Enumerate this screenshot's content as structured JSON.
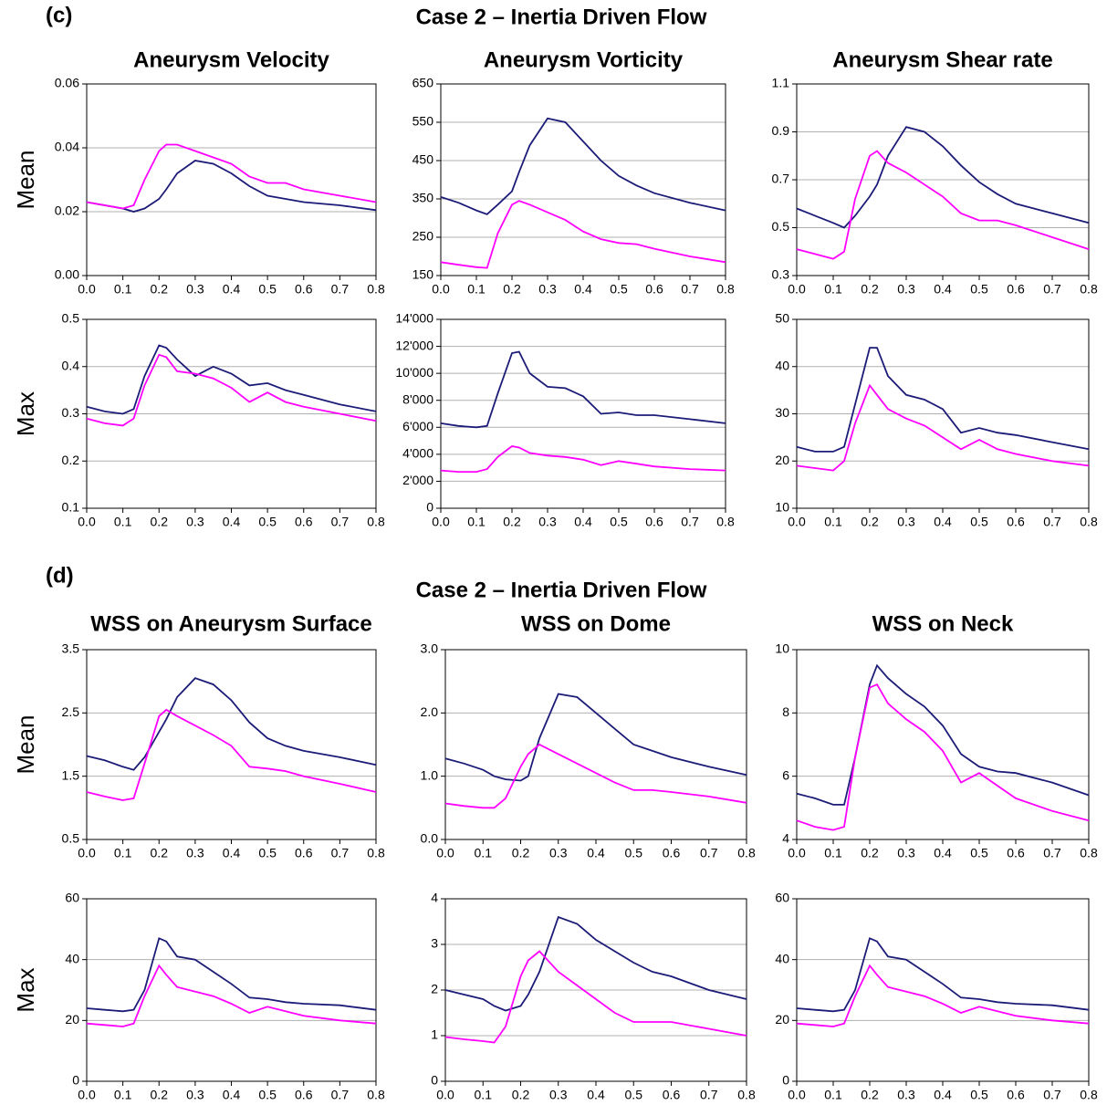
{
  "panels": [
    {
      "label": "(c)",
      "title": "Case 2 – Inertia Driven Flow"
    },
    {
      "label": "(d)",
      "title": "Case 2 – Inertia Driven Flow"
    }
  ],
  "chart_data": [
    {
      "type": "line",
      "title": "Aneurysm Velocity",
      "ylabel": "Mean",
      "grid": true,
      "x": [
        0,
        0.05,
        0.1,
        0.13,
        0.16,
        0.2,
        0.22,
        0.25,
        0.3,
        0.35,
        0.4,
        0.45,
        0.5,
        0.55,
        0.6,
        0.7,
        0.8
      ],
      "xlim": [
        0,
        0.8
      ],
      "xticks": [
        {
          "value": 0,
          "label": "0.0"
        },
        0.1,
        0.2,
        0.3,
        0.4,
        0.5,
        0.6,
        0.7,
        0.8
      ],
      "ylim": [
        0,
        0.06
      ],
      "yticks": [
        {
          "value": 0,
          "label": "0.00"
        },
        0.02,
        0.04,
        0.06
      ],
      "series": [
        {
          "color": "#1c1c78",
          "values": [
            0.023,
            0.022,
            0.021,
            0.02,
            0.021,
            0.024,
            0.027,
            0.032,
            0.036,
            0.035,
            0.032,
            0.028,
            0.025,
            0.024,
            0.023,
            0.022,
            0.0205
          ]
        },
        {
          "color": "#ff00ff",
          "values": [
            0.023,
            0.022,
            0.021,
            0.022,
            0.03,
            0.039,
            0.041,
            0.041,
            0.039,
            0.037,
            0.035,
            0.031,
            0.029,
            0.029,
            0.027,
            0.025,
            0.023
          ]
        }
      ]
    },
    {
      "type": "line",
      "title": "Aneurysm Vorticity",
      "grid": true,
      "x": [
        0,
        0.05,
        0.1,
        0.13,
        0.16,
        0.2,
        0.22,
        0.25,
        0.3,
        0.35,
        0.4,
        0.45,
        0.5,
        0.55,
        0.6,
        0.7,
        0.8
      ],
      "xlim": [
        0,
        0.8
      ],
      "xticks": [
        {
          "value": 0,
          "label": "0.0"
        },
        0.1,
        0.2,
        0.3,
        0.4,
        0.5,
        0.6,
        0.7,
        0.8
      ],
      "ylim": [
        150,
        650
      ],
      "yticks": [
        150,
        250,
        350,
        450,
        550,
        650
      ],
      "series": [
        {
          "color": "#1c1c78",
          "values": [
            355,
            340,
            320,
            310,
            335,
            370,
            420,
            490,
            560,
            550,
            500,
            450,
            410,
            385,
            365,
            340,
            320
          ]
        },
        {
          "color": "#ff00ff",
          "values": [
            185,
            178,
            172,
            170,
            260,
            335,
            345,
            335,
            315,
            295,
            265,
            245,
            235,
            232,
            220,
            200,
            185
          ]
        }
      ]
    },
    {
      "type": "line",
      "title": "Aneurysm Shear rate",
      "grid": true,
      "x": [
        0,
        0.05,
        0.1,
        0.13,
        0.16,
        0.2,
        0.22,
        0.25,
        0.3,
        0.35,
        0.4,
        0.45,
        0.5,
        0.55,
        0.6,
        0.7,
        0.8
      ],
      "xlim": [
        0,
        0.8
      ],
      "xticks": [
        {
          "value": 0,
          "label": "0.0"
        },
        0.1,
        0.2,
        0.3,
        0.4,
        0.5,
        0.6,
        0.7,
        0.8
      ],
      "ylim": [
        0.3,
        1.1
      ],
      "yticks": [
        0.3,
        0.5,
        0.7,
        0.9,
        1.1
      ],
      "series": [
        {
          "color": "#1c1c78",
          "values": [
            0.58,
            0.55,
            0.52,
            0.5,
            0.55,
            0.63,
            0.68,
            0.8,
            0.92,
            0.9,
            0.84,
            0.76,
            0.69,
            0.64,
            0.6,
            0.56,
            0.52
          ]
        },
        {
          "color": "#ff00ff",
          "values": [
            0.41,
            0.39,
            0.37,
            0.4,
            0.62,
            0.8,
            0.82,
            0.77,
            0.73,
            0.68,
            0.63,
            0.56,
            0.53,
            0.53,
            0.51,
            0.46,
            0.41
          ]
        }
      ]
    },
    {
      "type": "line",
      "ylabel": "Max",
      "grid": true,
      "x": [
        0,
        0.05,
        0.1,
        0.13,
        0.16,
        0.2,
        0.22,
        0.25,
        0.3,
        0.35,
        0.4,
        0.45,
        0.5,
        0.55,
        0.6,
        0.7,
        0.8
      ],
      "xlim": [
        0,
        0.8
      ],
      "xticks": [
        {
          "value": 0,
          "label": "0.0"
        },
        0.1,
        0.2,
        0.3,
        0.4,
        0.5,
        0.6,
        0.7,
        0.8
      ],
      "ylim": [
        0.1,
        0.5
      ],
      "yticks": [
        0.1,
        0.2,
        0.3,
        0.4,
        0.5
      ],
      "series": [
        {
          "color": "#1c1c78",
          "values": [
            0.315,
            0.305,
            0.3,
            0.31,
            0.38,
            0.445,
            0.44,
            0.415,
            0.38,
            0.4,
            0.385,
            0.36,
            0.365,
            0.35,
            0.34,
            0.32,
            0.305
          ]
        },
        {
          "color": "#ff00ff",
          "values": [
            0.29,
            0.28,
            0.275,
            0.29,
            0.36,
            0.425,
            0.42,
            0.39,
            0.385,
            0.375,
            0.355,
            0.325,
            0.345,
            0.325,
            0.315,
            0.3,
            0.285
          ]
        }
      ]
    },
    {
      "type": "line",
      "grid": true,
      "x": [
        0,
        0.05,
        0.1,
        0.13,
        0.16,
        0.2,
        0.22,
        0.25,
        0.3,
        0.35,
        0.4,
        0.45,
        0.5,
        0.55,
        0.6,
        0.7,
        0.8
      ],
      "xlim": [
        0,
        0.8
      ],
      "xticks": [
        {
          "value": 0,
          "label": "0.0"
        },
        0.1,
        0.2,
        0.3,
        0.4,
        0.5,
        0.6,
        0.7,
        0.8
      ],
      "ylim": [
        0,
        14000
      ],
      "yticks": [
        0,
        {
          "value": 2000,
          "label": "2'000"
        },
        {
          "value": 4000,
          "label": "4'000"
        },
        {
          "value": 6000,
          "label": "6'000"
        },
        {
          "value": 8000,
          "label": "8'000"
        },
        {
          "value": 10000,
          "label": "10'000"
        },
        {
          "value": 12000,
          "label": "12'000"
        },
        {
          "value": 14000,
          "label": "14'000"
        }
      ],
      "series": [
        {
          "color": "#1c1c78",
          "values": [
            6300,
            6100,
            6000,
            6100,
            8500,
            11500,
            11600,
            10000,
            9000,
            8900,
            8300,
            7000,
            7100,
            6900,
            6900,
            6600,
            6300
          ]
        },
        {
          "color": "#ff00ff",
          "values": [
            2800,
            2700,
            2700,
            2900,
            3800,
            4600,
            4500,
            4100,
            3900,
            3800,
            3600,
            3200,
            3500,
            3300,
            3100,
            2900,
            2800
          ]
        }
      ]
    },
    {
      "type": "line",
      "grid": true,
      "x": [
        0,
        0.05,
        0.1,
        0.13,
        0.16,
        0.2,
        0.22,
        0.25,
        0.3,
        0.35,
        0.4,
        0.45,
        0.5,
        0.55,
        0.6,
        0.7,
        0.8
      ],
      "xlim": [
        0,
        0.8
      ],
      "xticks": [
        {
          "value": 0,
          "label": "0.0"
        },
        0.1,
        0.2,
        0.3,
        0.4,
        0.5,
        0.6,
        0.7,
        0.8
      ],
      "ylim": [
        10,
        50
      ],
      "yticks": [
        10,
        20,
        30,
        40,
        50
      ],
      "series": [
        {
          "color": "#1c1c78",
          "values": [
            23,
            22,
            22,
            23,
            32,
            44,
            44,
            38,
            34,
            33,
            31,
            26,
            27,
            26,
            25.5,
            24,
            22.5
          ]
        },
        {
          "color": "#ff00ff",
          "values": [
            19,
            18.5,
            18,
            20,
            28,
            36,
            34,
            31,
            29,
            27.5,
            25,
            22.5,
            24.5,
            22.5,
            21.5,
            20,
            19
          ]
        }
      ]
    },
    {
      "type": "line",
      "title": "WSS on Aneurysm Surface",
      "ylabel": "Mean",
      "grid": true,
      "x": [
        0,
        0.05,
        0.1,
        0.13,
        0.16,
        0.2,
        0.22,
        0.25,
        0.3,
        0.35,
        0.4,
        0.45,
        0.5,
        0.55,
        0.6,
        0.7,
        0.8
      ],
      "xlim": [
        0,
        0.8
      ],
      "xticks": [
        {
          "value": 0,
          "label": "0.0"
        },
        0.1,
        0.2,
        0.3,
        0.4,
        0.5,
        0.6,
        0.7,
        0.8
      ],
      "ylim": [
        0.5,
        3.5
      ],
      "yticks": [
        0.5,
        1.5,
        2.5,
        3.5
      ],
      "series": [
        {
          "color": "#1c1c78",
          "values": [
            1.82,
            1.75,
            1.65,
            1.6,
            1.8,
            2.2,
            2.4,
            2.75,
            3.05,
            2.95,
            2.7,
            2.35,
            2.1,
            1.98,
            1.9,
            1.8,
            1.68
          ]
        },
        {
          "color": "#ff00ff",
          "values": [
            1.25,
            1.18,
            1.12,
            1.15,
            1.7,
            2.45,
            2.55,
            2.45,
            2.3,
            2.15,
            1.98,
            1.65,
            1.62,
            1.58,
            1.5,
            1.38,
            1.25
          ]
        }
      ]
    },
    {
      "type": "line",
      "title": "WSS on Dome",
      "grid": true,
      "x": [
        0,
        0.05,
        0.1,
        0.13,
        0.16,
        0.2,
        0.22,
        0.25,
        0.3,
        0.35,
        0.4,
        0.45,
        0.5,
        0.55,
        0.6,
        0.7,
        0.8
      ],
      "xlim": [
        0,
        0.8
      ],
      "xticks": [
        {
          "value": 0,
          "label": "0.0"
        },
        0.1,
        0.2,
        0.3,
        0.4,
        0.5,
        0.6,
        0.7,
        0.8
      ],
      "ylim": [
        0,
        3
      ],
      "yticks": [
        {
          "value": 0,
          "label": "0.0"
        },
        {
          "value": 1,
          "label": "1.0"
        },
        {
          "value": 2,
          "label": "2.0"
        },
        {
          "value": 3,
          "label": "3.0"
        }
      ],
      "series": [
        {
          "color": "#1c1c78",
          "values": [
            1.28,
            1.2,
            1.1,
            1.0,
            0.95,
            0.93,
            1.0,
            1.6,
            2.3,
            2.25,
            2.0,
            1.75,
            1.5,
            1.4,
            1.3,
            1.15,
            1.02
          ]
        },
        {
          "color": "#ff00ff",
          "values": [
            0.57,
            0.53,
            0.5,
            0.5,
            0.65,
            1.15,
            1.35,
            1.5,
            1.35,
            1.2,
            1.05,
            0.9,
            0.78,
            0.78,
            0.75,
            0.68,
            0.58
          ]
        }
      ]
    },
    {
      "type": "line",
      "title": "WSS on Neck",
      "grid": true,
      "x": [
        0,
        0.05,
        0.1,
        0.13,
        0.16,
        0.2,
        0.22,
        0.25,
        0.3,
        0.35,
        0.4,
        0.45,
        0.5,
        0.55,
        0.6,
        0.7,
        0.8
      ],
      "xlim": [
        0,
        0.8
      ],
      "xticks": [
        {
          "value": 0,
          "label": "0.0"
        },
        0.1,
        0.2,
        0.3,
        0.4,
        0.5,
        0.6,
        0.7,
        0.8
      ],
      "ylim": [
        4,
        10
      ],
      "yticks": [
        4,
        6,
        8,
        10
      ],
      "series": [
        {
          "color": "#1c1c78",
          "values": [
            5.45,
            5.3,
            5.1,
            5.1,
            6.6,
            8.9,
            9.5,
            9.1,
            8.6,
            8.2,
            7.6,
            6.7,
            6.3,
            6.15,
            6.1,
            5.8,
            5.4
          ]
        },
        {
          "color": "#ff00ff",
          "values": [
            4.6,
            4.4,
            4.3,
            4.4,
            6.6,
            8.8,
            8.9,
            8.3,
            7.8,
            7.4,
            6.8,
            5.8,
            6.1,
            5.7,
            5.3,
            4.9,
            4.6
          ]
        }
      ]
    },
    {
      "type": "line",
      "ylabel": "Max",
      "grid": true,
      "x": [
        0,
        0.05,
        0.1,
        0.13,
        0.16,
        0.2,
        0.22,
        0.25,
        0.3,
        0.35,
        0.4,
        0.45,
        0.5,
        0.55,
        0.6,
        0.7,
        0.8
      ],
      "xlim": [
        0,
        0.8
      ],
      "xticks": [
        {
          "value": 0,
          "label": "0.0"
        },
        0.1,
        0.2,
        0.3,
        0.4,
        0.5,
        0.6,
        0.7,
        0.8
      ],
      "ylim": [
        0,
        60
      ],
      "yticks": [
        0,
        20,
        40,
        60
      ],
      "series": [
        {
          "color": "#1c1c78",
          "values": [
            24,
            23.5,
            23,
            23.5,
            30,
            47,
            46,
            41,
            40,
            36,
            32,
            27.5,
            27,
            26,
            25.5,
            25,
            23.5
          ]
        },
        {
          "color": "#ff00ff",
          "values": [
            19,
            18.5,
            18,
            19,
            28,
            38,
            35,
            31,
            29.5,
            28,
            25.5,
            22.5,
            24.5,
            23,
            21.5,
            20,
            19
          ]
        }
      ]
    },
    {
      "type": "line",
      "grid": true,
      "x": [
        0,
        0.05,
        0.1,
        0.13,
        0.16,
        0.2,
        0.22,
        0.25,
        0.3,
        0.35,
        0.4,
        0.45,
        0.5,
        0.55,
        0.6,
        0.7,
        0.8
      ],
      "xlim": [
        0,
        0.8
      ],
      "xticks": [
        {
          "value": 0,
          "label": "0.0"
        },
        0.1,
        0.2,
        0.3,
        0.4,
        0.5,
        0.6,
        0.7,
        0.8
      ],
      "ylim": [
        0,
        4
      ],
      "yticks": [
        0,
        1,
        2,
        3,
        4
      ],
      "series": [
        {
          "color": "#1c1c78",
          "values": [
            2.0,
            1.9,
            1.8,
            1.65,
            1.55,
            1.65,
            1.9,
            2.4,
            3.6,
            3.45,
            3.1,
            2.85,
            2.6,
            2.4,
            2.3,
            2.0,
            1.8
          ]
        },
        {
          "color": "#ff00ff",
          "values": [
            0.97,
            0.92,
            0.88,
            0.85,
            1.2,
            2.3,
            2.65,
            2.85,
            2.4,
            2.1,
            1.8,
            1.5,
            1.3,
            1.3,
            1.3,
            1.15,
            1.0
          ]
        }
      ]
    },
    {
      "type": "line",
      "grid": true,
      "x": [
        0,
        0.05,
        0.1,
        0.13,
        0.16,
        0.2,
        0.22,
        0.25,
        0.3,
        0.35,
        0.4,
        0.45,
        0.5,
        0.55,
        0.6,
        0.7,
        0.8
      ],
      "xlim": [
        0,
        0.8
      ],
      "xticks": [
        {
          "value": 0,
          "label": "0.0"
        },
        0.1,
        0.2,
        0.3,
        0.4,
        0.5,
        0.6,
        0.7,
        0.8
      ],
      "ylim": [
        0,
        60
      ],
      "yticks": [
        0,
        20,
        40,
        60
      ],
      "series": [
        {
          "color": "#1c1c78",
          "values": [
            24,
            23.5,
            23,
            23.5,
            30,
            47,
            46,
            41,
            40,
            36,
            32,
            27.5,
            27,
            26,
            25.5,
            25,
            23.5
          ]
        },
        {
          "color": "#ff00ff",
          "values": [
            19,
            18.5,
            18,
            19,
            28,
            38,
            35,
            31,
            29.5,
            28,
            25.5,
            22.5,
            24.5,
            23,
            21.5,
            20,
            19
          ]
        }
      ]
    }
  ]
}
